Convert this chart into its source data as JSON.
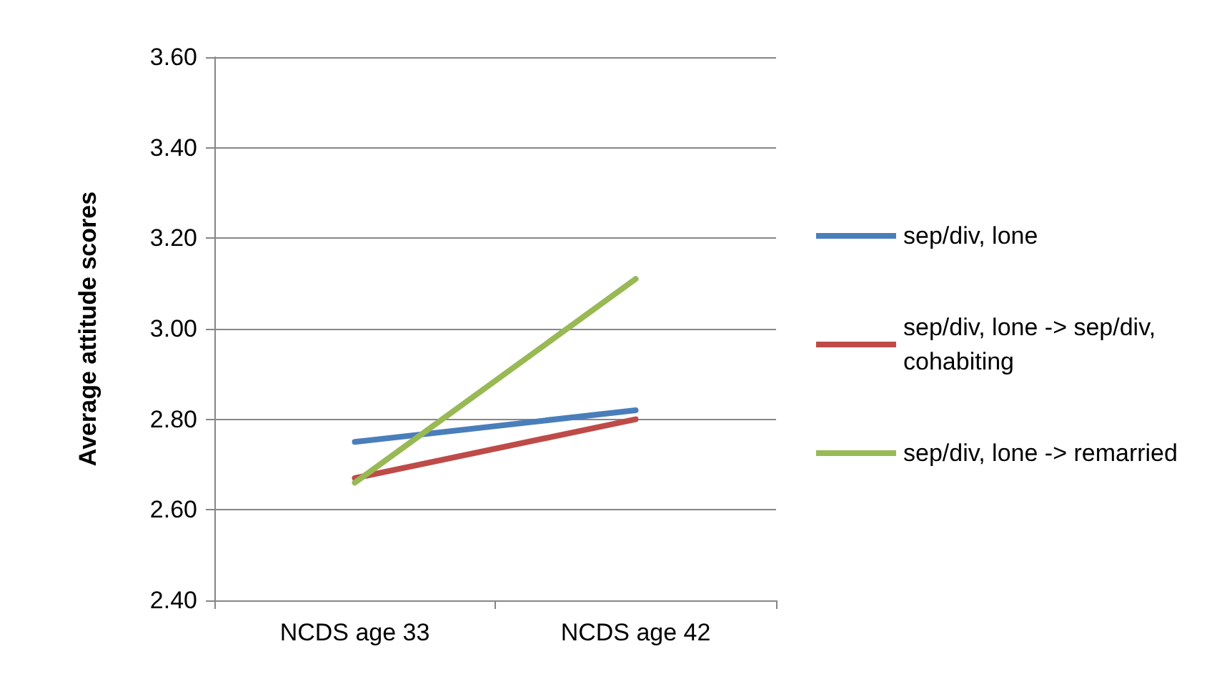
{
  "chart_data": {
    "type": "line",
    "ylabel": "Average attitude scores",
    "categories": [
      "NCDS age 33",
      "NCDS age 42"
    ],
    "series": [
      {
        "name": "sep/div, lone",
        "color": "#4a7ebb",
        "values": [
          2.75,
          2.82
        ]
      },
      {
        "name": "sep/div, lone -> sep/div, cohabiting",
        "color": "#be4b48",
        "values": [
          2.67,
          2.8
        ]
      },
      {
        "name": "sep/div, lone -> remarried",
        "color": "#98b954",
        "values": [
          2.66,
          3.11
        ]
      }
    ],
    "ylim": [
      2.4,
      3.6
    ],
    "yticks": [
      {
        "value": 2.4,
        "label": "2.40"
      },
      {
        "value": 2.6,
        "label": "2.60"
      },
      {
        "value": 2.8,
        "label": "2.80"
      },
      {
        "value": 3.0,
        "label": "3.00"
      },
      {
        "value": 3.2,
        "label": "3.20"
      },
      {
        "value": 3.4,
        "label": "3.40"
      },
      {
        "value": 3.6,
        "label": "3.60"
      }
    ],
    "grid": "y",
    "legend": "right",
    "marker": "none",
    "line_style": "solid"
  }
}
